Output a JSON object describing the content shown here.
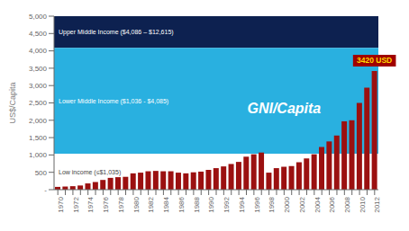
{
  "chart_data": {
    "type": "bar",
    "categories": [
      1970,
      null,
      1972,
      null,
      1974,
      null,
      1976,
      null,
      1978,
      null,
      1980,
      null,
      1982,
      null,
      1984,
      null,
      1986,
      null,
      1988,
      null,
      1990,
      null,
      1992,
      null,
      1994,
      null,
      1996,
      null,
      1998,
      null,
      2000,
      null,
      2002,
      null,
      2004,
      null,
      2006,
      null,
      2008,
      null,
      2010,
      null,
      2012
    ],
    "values": [
      80,
      90,
      100,
      120,
      180,
      220,
      280,
      340,
      360,
      370,
      470,
      490,
      530,
      540,
      530,
      530,
      490,
      470,
      500,
      520,
      570,
      620,
      670,
      740,
      800,
      950,
      1020,
      1070,
      490,
      620,
      660,
      680,
      790,
      900,
      1020,
      1230,
      1390,
      1560,
      1970,
      2000,
      2500,
      2940,
      3420
    ],
    "color": "#9B1010",
    "ylabel": "US$/Capita",
    "ylim": [
      0,
      5000
    ],
    "yticks": [
      {
        "value": 0,
        "label": "-"
      },
      500,
      {
        "value": 1000,
        "label": "1,000"
      },
      {
        "value": 1500,
        "label": "1,500"
      },
      {
        "value": 2000,
        "label": "2,000"
      },
      {
        "value": 2500,
        "label": "2,500"
      },
      {
        "value": 3000,
        "label": "3,000"
      },
      {
        "value": 3500,
        "label": "3,500"
      },
      {
        "value": 4000,
        "label": "4,000"
      },
      {
        "value": 4500,
        "label": "4,500"
      },
      {
        "value": 5000,
        "label": "5,000"
      }
    ],
    "grid": false,
    "bands": [
      {
        "from": 4086,
        "to": 5000,
        "color": "#0D2150",
        "label": "Upper Middle Income ($4,086 – $12,615)"
      },
      {
        "from": 1036,
        "to": 4085,
        "color": "#29B0E0",
        "label": "Lower Middle Income ($1,036 - $4,085)"
      },
      {
        "from": 0,
        "to": 1035,
        "color": "#FFFFFF",
        "label": "Low income (≤$1,035)"
      }
    ],
    "annotations": [
      {
        "text": "GNI/Capita"
      },
      {
        "text": "3420 USD",
        "x": 2012
      }
    ]
  }
}
